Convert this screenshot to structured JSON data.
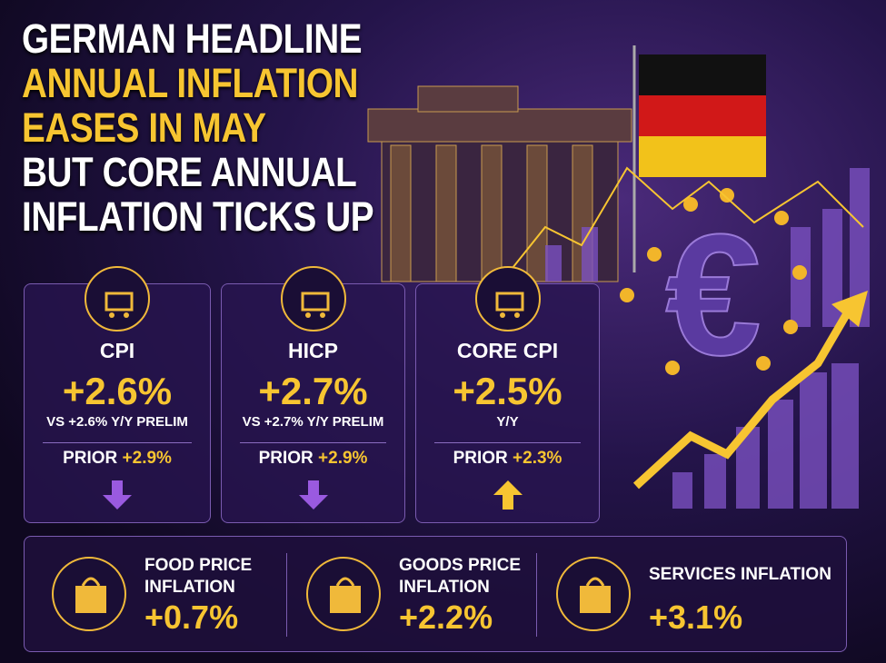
{
  "title": {
    "lines": [
      "GERMAN HEADLINE",
      "ANNUAL INFLATION",
      "EASES IN MAY",
      "BUT CORE ANNUAL",
      "INFLATION TICKS UP"
    ]
  },
  "cards": [
    {
      "label": "CPI",
      "value": "+2.6%",
      "note": "VS +2.6% Y/Y PRELIM",
      "prior_label": "PRIOR",
      "prior_value": "+2.9%"
    },
    {
      "label": "HICP",
      "value": "+2.7%",
      "note": "VS +2.7% Y/Y PRELIM",
      "prior_label": "PRIOR",
      "prior_value": "+2.9%"
    },
    {
      "label": "CORE CPI",
      "value": "+2.5%",
      "note": "Y/Y",
      "prior_label": "PRIOR",
      "prior_value": "+2.3%"
    }
  ],
  "components": [
    {
      "label_lines": [
        "FOOD PRICE",
        "INFLATION"
      ],
      "value": "+0.7%"
    },
    {
      "label_lines": [
        "GOODS PRICE",
        "INFLATION"
      ],
      "value": "+2.2%"
    },
    {
      "label_lines": [
        "SERVICES INFLATION"
      ],
      "value": "+3.1%"
    }
  ]
}
